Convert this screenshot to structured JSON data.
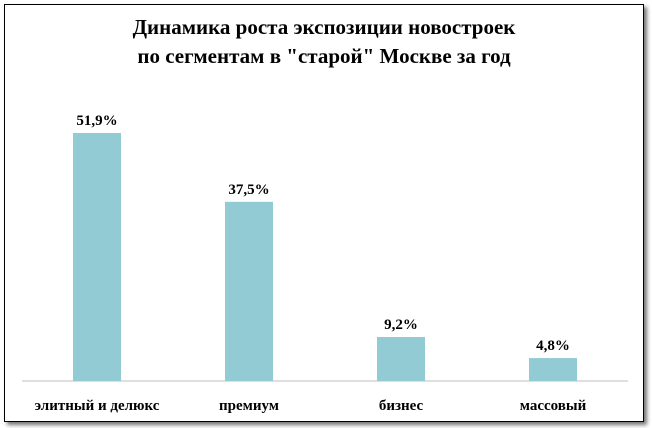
{
  "chart_data": {
    "type": "bar",
    "title": [
      "Динамика роста экспозиции новостроек",
      "по сегментам в \"старой\" Москве за год"
    ],
    "categories": [
      "элитный и делюкс",
      "премиум",
      "бизнес",
      "массовый"
    ],
    "values": [
      51.9,
      37.5,
      9.2,
      4.8
    ],
    "value_labels": [
      "51,9%",
      "37,5%",
      "9,2%",
      "4,8%"
    ],
    "bar_color": "#92cbd3",
    "ylim": [
      0,
      52
    ],
    "grid": false,
    "legend": "none",
    "xlabel": "",
    "ylabel": ""
  }
}
